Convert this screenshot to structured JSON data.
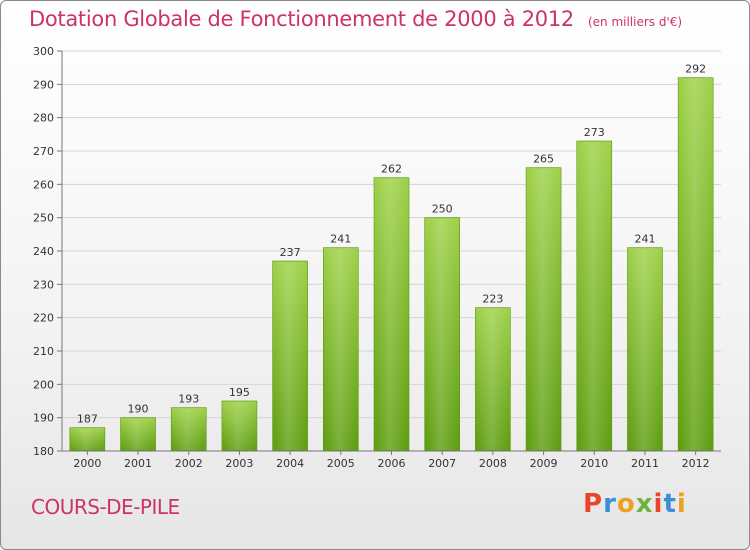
{
  "chart_data": {
    "type": "bar",
    "title": "Dotation Globale de Fonctionnement de 2000 à 2012",
    "subtitle": "(en milliers d'€)",
    "categories": [
      "2000",
      "2001",
      "2002",
      "2003",
      "2004",
      "2005",
      "2006",
      "2007",
      "2008",
      "2009",
      "2010",
      "2011",
      "2012"
    ],
    "values": [
      187,
      190,
      193,
      195,
      237,
      241,
      262,
      250,
      223,
      265,
      273,
      241,
      292
    ],
    "ylim": [
      180,
      300
    ],
    "yticks": [
      180,
      190,
      200,
      210,
      220,
      230,
      240,
      250,
      260,
      270,
      280,
      290,
      300
    ],
    "grid": true,
    "bar_color": "#7fbf2e"
  },
  "footer": {
    "commune": "COURS-DE-PILE",
    "brand": "Proxiti",
    "brand_colors": [
      "#e8452c",
      "#3a8fd6",
      "#f0a020",
      "#6cb33f",
      "#e8452c",
      "#3a8fd6",
      "#f0a020"
    ]
  }
}
